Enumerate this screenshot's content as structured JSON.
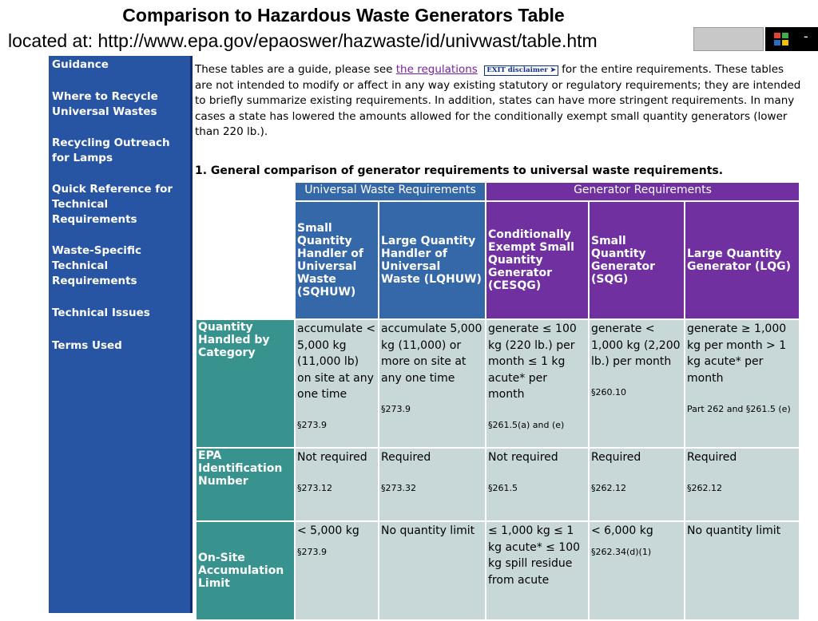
{
  "slide": {
    "title": "Comparison to Hazardous Waste Generators Table",
    "subtitle": "located at: http://www.epa.gov/epaoswer/hazwaste/id/univwast/table.htm"
  },
  "taskbar": {
    "icon": "windows-flag-icon",
    "dash": "-"
  },
  "sidebar": {
    "items": [
      "Guidance",
      "Where to Recycle Universal Wastes",
      "Recycling Outreach for Lamps",
      "Quick Reference for Technical Requirements",
      "Waste-Specific Technical Requirements",
      "Technical Issues",
      "Terms Used"
    ]
  },
  "intro": {
    "before_link": "These tables are a guide, please see ",
    "link_text": "the regulations",
    "exit_badge": "EXIT disclaimer",
    "exit_arrow": "➤",
    "after_link": " for the entire requirements. These tables are not intended to modify or affect in any way existing statutory or regulatory requirements; they are intended to briefly summarize existing requirements. In addition, states can have more stringent requirements. In many cases a state has lowered the amounts allowed for the conditionally exempt small quantity generators (lower than 220 lb.)."
  },
  "section_heading": "1. General comparison of generator requirements to universal waste requirements.",
  "table": {
    "group_headers": [
      "Universal Waste Requirements",
      "Generator Requirements"
    ],
    "column_headers": [
      "Small Quantity Handler of Universal Waste (SQHUW)",
      "Large Quantity Handler of Universal Waste (LQHUW)",
      "Conditionally Exempt Small Quantity Generator (CESQG)",
      "Small Quantity Generator (SQG)",
      "Large Quantity Generator (LQG)"
    ],
    "rows": [
      {
        "label": "Quantity Handled by Category",
        "cells": [
          {
            "text": "accumulate < 5,000 kg (11,000 lb) on site at any one time",
            "cite": "§273.9"
          },
          {
            "text": "accumulate 5,000 kg (11,000) or more on site at any one time",
            "cite": "§273.9"
          },
          {
            "text": "generate ≤ 100 kg (220 lb.) per month ≤ 1 kg acute* per month",
            "cite": "§261.5(a) and (e)"
          },
          {
            "text": "generate < 1,000 kg (2,200 lb.) per month",
            "cite": "§260.10"
          },
          {
            "text": "generate ≥ 1,000 kg per month > 1 kg acute* per month",
            "cite": "Part 262 and §261.5 (e)"
          }
        ]
      },
      {
        "label": "EPA Identification Number",
        "cells": [
          {
            "text": "Not required",
            "cite": "§273.12"
          },
          {
            "text": "Required",
            "cite": "§273.32"
          },
          {
            "text": "Not required",
            "cite": "§261.5"
          },
          {
            "text": "Required",
            "cite": "§262.12"
          },
          {
            "text": "Required",
            "cite": "§262.12"
          }
        ]
      },
      {
        "label": "On-Site Accumulation Limit",
        "cells": [
          {
            "text": "< 5,000 kg",
            "cite": "§273.9"
          },
          {
            "text": "No quantity limit",
            "cite": ""
          },
          {
            "text": "≤ 1,000 kg ≤ 1 kg acute* ≤ 100 kg spill residue from acute",
            "cite": ""
          },
          {
            "text": "< 6,000 kg",
            "cite": "§262.34(d)(1)"
          },
          {
            "text": "No quantity limit",
            "cite": ""
          }
        ]
      }
    ]
  }
}
